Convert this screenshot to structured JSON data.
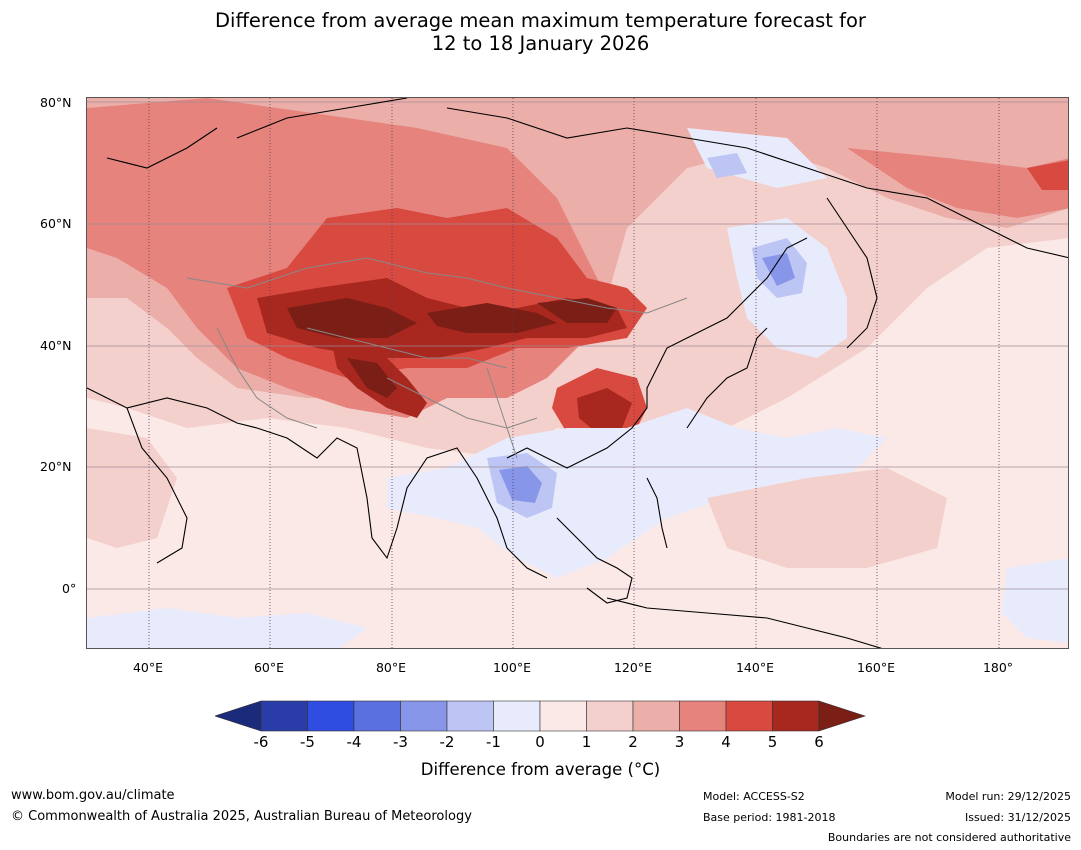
{
  "title": {
    "line1": "Difference from average mean maximum temperature forecast for",
    "line2": "12 to 18 January 2026"
  },
  "map": {
    "region": "Asia and western Pacific",
    "lat_labels": [
      "80°N",
      "60°N",
      "40°N",
      "20°N",
      "0°"
    ],
    "lon_labels": [
      "40°E",
      "60°E",
      "80°E",
      "100°E",
      "120°E",
      "140°E",
      "160°E",
      "180°"
    ],
    "colors": {
      "m6": "#1b2a7a",
      "m5": "#2a3ca8",
      "m4": "#2f4de0",
      "m3": "#5a70e0",
      "m2": "#8896ea",
      "m1": "#bdc5f4",
      "z0": "#e8ebfb",
      "p0": "#fbe9e8",
      "p1": "#f4d0cc",
      "p2": "#ecaea8",
      "p3": "#e5837c",
      "p4": "#d8493f",
      "p5": "#a8271f",
      "p6": "#7a1e16"
    }
  },
  "colorbar": {
    "ticks": [
      "-6",
      "-5",
      "-4",
      "-3",
      "-2",
      "-1",
      "0",
      "1",
      "2",
      "3",
      "4",
      "5",
      "6"
    ],
    "label": "Difference from average (°C)"
  },
  "footer": {
    "website": "www.bom.gov.au/climate",
    "copyright": "© Commonwealth of Australia 2025, Australian Bureau of Meteorology",
    "model": "Model: ACCESS-S2",
    "base_period": "Base period: 1981-2018",
    "model_run": "Model run: 29/12/2025",
    "issued": "Issued: 31/12/2025",
    "disclaimer": "Boundaries are not considered authoritative"
  }
}
